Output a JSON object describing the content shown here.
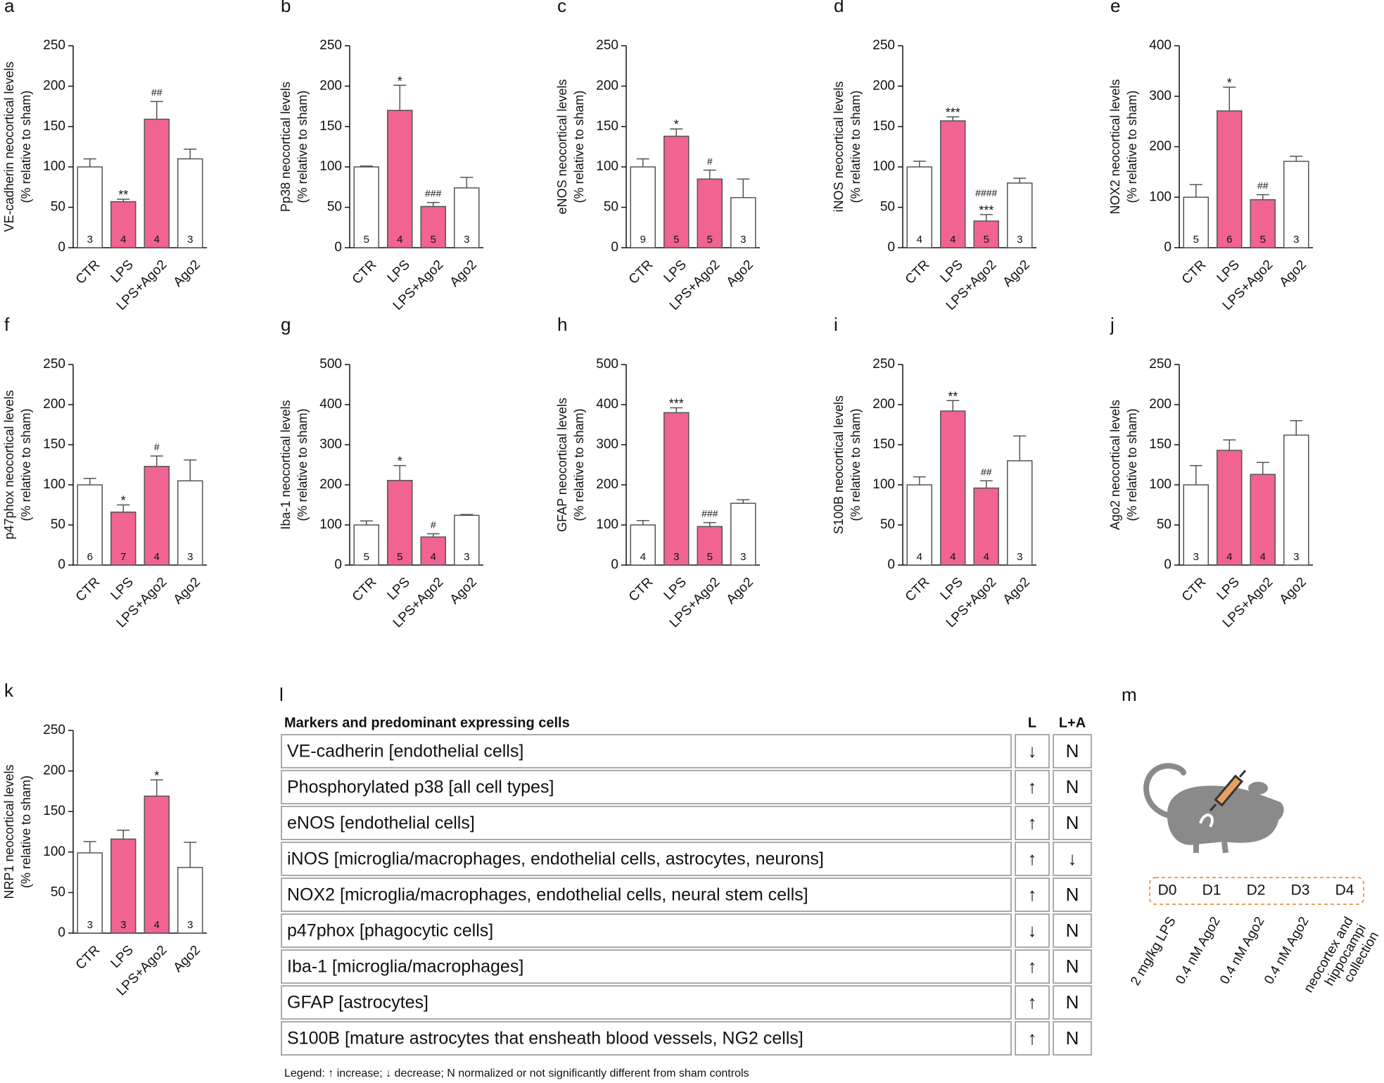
{
  "chart_data": [
    {
      "type": "bar",
      "label": "a",
      "ylabel": [
        "VE-cadherin neocortical levels",
        "(% relative to sham)"
      ],
      "categories": [
        "CTR",
        "LPS",
        "LPS+Ago2",
        "Ago2"
      ],
      "values": [
        100,
        57,
        159,
        110
      ],
      "errors": [
        10,
        3,
        22,
        12
      ],
      "n": [
        3,
        4,
        4,
        3
      ],
      "stars": [
        null,
        "**",
        null,
        null
      ],
      "hashes": [
        null,
        null,
        "##",
        null
      ],
      "colors": [
        "#ffffff",
        "#f0648f",
        "#f0648f",
        "#ffffff"
      ],
      "ylim": [
        0,
        250
      ],
      "yticks": [
        0,
        50,
        100,
        150,
        200,
        250
      ]
    },
    {
      "type": "bar",
      "label": "b",
      "ylabel": [
        "Pp38 neocortical levels",
        "(% relative to sham)"
      ],
      "categories": [
        "CTR",
        "LPS",
        "LPS+Ago2",
        "Ago2"
      ],
      "values": [
        100,
        170,
        51,
        74
      ],
      "errors": [
        1,
        31,
        5,
        13
      ],
      "n": [
        5,
        4,
        5,
        3
      ],
      "stars": [
        null,
        "*",
        null,
        null
      ],
      "hashes": [
        null,
        null,
        "###",
        null
      ],
      "colors": [
        "#ffffff",
        "#f0648f",
        "#f0648f",
        "#ffffff"
      ],
      "ylim": [
        0,
        250
      ],
      "yticks": [
        0,
        50,
        100,
        150,
        200,
        250
      ]
    },
    {
      "type": "bar",
      "label": "c",
      "ylabel": [
        "eNOS neocortical levels",
        "(% relative to sham)"
      ],
      "categories": [
        "CTR",
        "LPS",
        "LPS+Ago2",
        "Ago2"
      ],
      "values": [
        100,
        138,
        85,
        62
      ],
      "errors": [
        10,
        9,
        11,
        23
      ],
      "n": [
        9,
        5,
        5,
        3
      ],
      "stars": [
        null,
        "*",
        null,
        null
      ],
      "hashes": [
        null,
        null,
        "#",
        null
      ],
      "colors": [
        "#ffffff",
        "#f0648f",
        "#f0648f",
        "#ffffff"
      ],
      "ylim": [
        0,
        250
      ],
      "yticks": [
        0,
        50,
        100,
        150,
        200,
        250
      ]
    },
    {
      "type": "bar",
      "label": "d",
      "ylabel": [
        "iNOS neocortical levels",
        "(% relative to sham)"
      ],
      "categories": [
        "CTR",
        "LPS",
        "LPS+Ago2",
        "Ago2"
      ],
      "values": [
        100,
        157,
        33,
        80
      ],
      "errors": [
        7,
        5,
        8,
        6
      ],
      "n": [
        4,
        4,
        5,
        3
      ],
      "stars": [
        null,
        "***",
        "***",
        null
      ],
      "hashes": [
        null,
        null,
        "####",
        null
      ],
      "colors": [
        "#ffffff",
        "#f0648f",
        "#f0648f",
        "#ffffff"
      ],
      "ylim": [
        0,
        250
      ],
      "yticks": [
        0,
        50,
        100,
        150,
        200,
        250
      ]
    },
    {
      "type": "bar",
      "label": "e",
      "ylabel": [
        "NOX2 neocortical levels",
        "(% relative to sham)"
      ],
      "categories": [
        "CTR",
        "LPS",
        "LPS+Ago2",
        "Ago2"
      ],
      "values": [
        100,
        271,
        95,
        171
      ],
      "errors": [
        25,
        47,
        10,
        10
      ],
      "n": [
        5,
        6,
        5,
        3
      ],
      "stars": [
        null,
        "*",
        null,
        null
      ],
      "hashes": [
        null,
        null,
        "##",
        null
      ],
      "colors": [
        "#ffffff",
        "#f0648f",
        "#f0648f",
        "#ffffff"
      ],
      "ylim": [
        0,
        400
      ],
      "yticks": [
        0,
        100,
        200,
        300,
        400
      ]
    },
    {
      "type": "bar",
      "label": "f",
      "ylabel": [
        "p47phox neocortical levels",
        "(% relative to sham)"
      ],
      "categories": [
        "CTR",
        "LPS",
        "LPS+Ago2",
        "Ago2"
      ],
      "values": [
        100,
        66,
        123,
        105
      ],
      "errors": [
        8,
        9,
        13,
        26
      ],
      "n": [
        6,
        7,
        4,
        3
      ],
      "stars": [
        null,
        "*",
        null,
        null
      ],
      "hashes": [
        null,
        null,
        "#",
        null
      ],
      "colors": [
        "#ffffff",
        "#f0648f",
        "#f0648f",
        "#ffffff"
      ],
      "ylim": [
        0,
        250
      ],
      "yticks": [
        0,
        50,
        100,
        150,
        200,
        250
      ]
    },
    {
      "type": "bar",
      "label": "g",
      "ylabel": [
        "Iba-1 neocortical levels",
        "(% relative to sham)"
      ],
      "categories": [
        "CTR",
        "LPS",
        "LPS+Ago2",
        "Ago2"
      ],
      "values": [
        100,
        211,
        70,
        124
      ],
      "errors": [
        10,
        37,
        8,
        2
      ],
      "n": [
        5,
        5,
        4,
        3
      ],
      "stars": [
        null,
        "*",
        null,
        null
      ],
      "hashes": [
        null,
        null,
        "#",
        null
      ],
      "colors": [
        "#ffffff",
        "#f0648f",
        "#f0648f",
        "#ffffff"
      ],
      "ylim": [
        0,
        500
      ],
      "yticks": [
        0,
        100,
        200,
        300,
        400,
        500
      ]
    },
    {
      "type": "bar",
      "label": "h",
      "ylabel": [
        "GFAP neocortical levels",
        "(% relative to sham)"
      ],
      "categories": [
        "CTR",
        "LPS",
        "LPS+Ago2",
        "Ago2"
      ],
      "values": [
        100,
        380,
        96,
        154
      ],
      "errors": [
        11,
        12,
        10,
        9
      ],
      "n": [
        4,
        3,
        5,
        3
      ],
      "stars": [
        null,
        "***",
        null,
        null
      ],
      "hashes": [
        null,
        null,
        "###",
        null
      ],
      "colors": [
        "#ffffff",
        "#f0648f",
        "#f0648f",
        "#ffffff"
      ],
      "ylim": [
        0,
        500
      ],
      "yticks": [
        0,
        100,
        200,
        300,
        400,
        500
      ]
    },
    {
      "type": "bar",
      "label": "i",
      "ylabel": [
        "S100B neocortical levels",
        "(% relative to sham)"
      ],
      "categories": [
        "CTR",
        "LPS",
        "LPS+Ago2",
        "Ago2"
      ],
      "values": [
        100,
        192,
        96,
        130
      ],
      "errors": [
        10,
        13,
        9,
        31
      ],
      "n": [
        4,
        4,
        4,
        3
      ],
      "stars": [
        null,
        "**",
        null,
        null
      ],
      "hashes": [
        null,
        null,
        "##",
        null
      ],
      "colors": [
        "#ffffff",
        "#f0648f",
        "#f0648f",
        "#ffffff"
      ],
      "ylim": [
        0,
        250
      ],
      "yticks": [
        0,
        50,
        100,
        150,
        200,
        250
      ]
    },
    {
      "type": "bar",
      "label": "j",
      "ylabel": [
        "Ago2 neocortical levels",
        "(% relative to sham)"
      ],
      "categories": [
        "CTR",
        "LPS",
        "LPS+Ago2",
        "Ago2"
      ],
      "values": [
        100,
        143,
        113,
        162
      ],
      "errors": [
        24,
        13,
        15,
        18
      ],
      "n": [
        3,
        4,
        4,
        3
      ],
      "stars": [
        null,
        null,
        null,
        null
      ],
      "hashes": [
        null,
        null,
        null,
        null
      ],
      "colors": [
        "#ffffff",
        "#f0648f",
        "#f0648f",
        "#ffffff"
      ],
      "ylim": [
        0,
        250
      ],
      "yticks": [
        0,
        50,
        100,
        150,
        200,
        250
      ]
    },
    {
      "type": "bar",
      "label": "k",
      "ylabel": [
        "NRP1 neocortical levels",
        "(% relative to sham)"
      ],
      "categories": [
        "CTR",
        "LPS",
        "LPS+Ago2",
        "Ago2"
      ],
      "values": [
        99,
        116,
        169,
        81
      ],
      "errors": [
        14,
        11,
        20,
        31
      ],
      "n": [
        3,
        3,
        4,
        3
      ],
      "stars": [
        null,
        null,
        "*",
        null
      ],
      "hashes": [
        null,
        null,
        null,
        null
      ],
      "colors": [
        "#ffffff",
        "#f0648f",
        "#f0648f",
        "#ffffff"
      ],
      "ylim": [
        0,
        250
      ],
      "yticks": [
        0,
        50,
        100,
        150,
        200,
        250
      ]
    }
  ],
  "table": {
    "label": "l",
    "header": [
      "Markers and predominant expressing cells",
      "L",
      "L+A"
    ],
    "rows": [
      [
        "VE-cadherin [endothelial cells]",
        "↓",
        "N"
      ],
      [
        "Phosphorylated p38 [all cell types]",
        "↑",
        "N"
      ],
      [
        "eNOS [endothelial cells]",
        "↑",
        "N"
      ],
      [
        "iNOS [microglia/macrophages, endothelial cells, astrocytes, neurons]",
        "↑",
        "↓"
      ],
      [
        "NOX2 [microglia/macrophages, endothelial cells, neural stem cells]",
        "↑",
        "N"
      ],
      [
        "p47phox [phagocytic cells]",
        "↓",
        "N"
      ],
      [
        "Iba-1 [microglia/macrophages]",
        "↑",
        "N"
      ],
      [
        "GFAP [astrocytes]",
        "↑",
        "N"
      ],
      [
        "S100B [mature astrocytes that ensheath blood vessels, NG2 cells]",
        "↑",
        "N"
      ]
    ],
    "legend": "Legend: ↑ increase; ↓ decrease; N normalized or not significantly different from sham controls"
  },
  "timeline": {
    "label": "m",
    "days": [
      "D0",
      "D1",
      "D2",
      "D3",
      "D4"
    ],
    "treatments": [
      [
        "2 mg/kg LPS"
      ],
      [
        "0.4 nM Ago2"
      ],
      [
        "0.4 nM Ago2"
      ],
      [
        "0.4 nM Ago2"
      ],
      [
        "neocortex and",
        "hippocampi",
        "collection"
      ]
    ]
  }
}
